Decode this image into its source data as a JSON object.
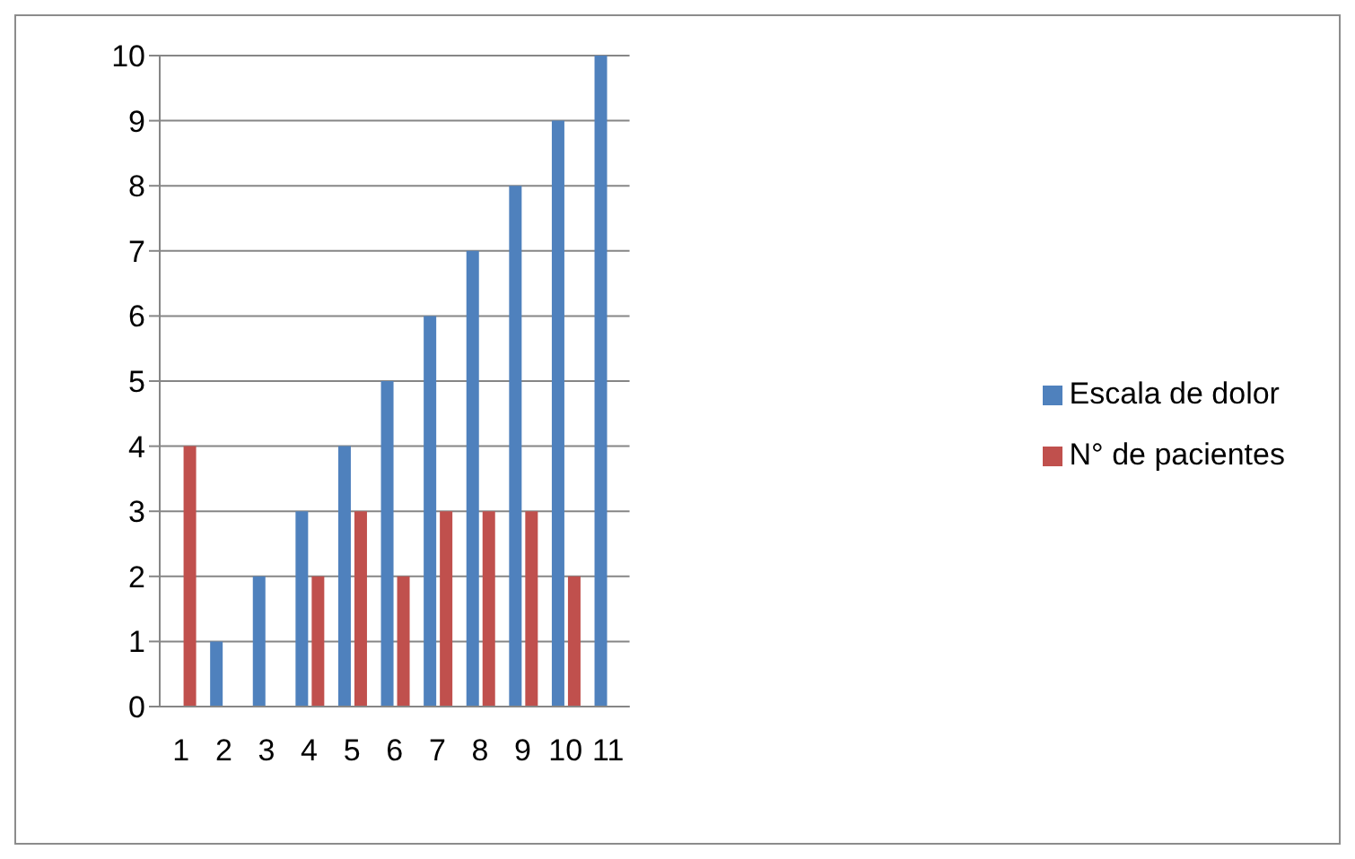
{
  "chart_data": {
    "type": "bar",
    "categories": [
      "1",
      "2",
      "3",
      "4",
      "5",
      "6",
      "7",
      "8",
      "9",
      "10",
      "11"
    ],
    "series": [
      {
        "name": "Escala de dolor",
        "color": "#4f81bd",
        "values": [
          0,
          1,
          2,
          3,
          4,
          5,
          6,
          7,
          8,
          9,
          10
        ]
      },
      {
        "name": "N° de pacientes",
        "color": "#c0504d",
        "values": [
          4,
          0,
          0,
          2,
          3,
          2,
          3,
          3,
          3,
          2,
          0
        ]
      }
    ],
    "ylim": [
      0,
      10
    ],
    "yticks": [
      0,
      1,
      2,
      3,
      4,
      5,
      6,
      7,
      8,
      9,
      10
    ],
    "grid": "y",
    "legend": "right"
  }
}
